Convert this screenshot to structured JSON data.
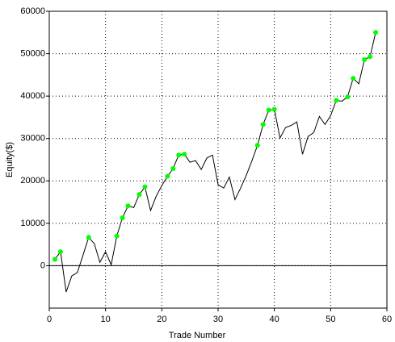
{
  "chart_data": {
    "type": "line",
    "x_label": "Trade Number",
    "y_label": "Equity($)",
    "x": [
      1,
      2,
      3,
      4,
      5,
      6,
      7,
      8,
      9,
      10,
      11,
      12,
      13,
      14,
      15,
      16,
      17,
      18,
      19,
      20,
      21,
      22,
      23,
      24,
      25,
      26,
      27,
      28,
      29,
      30,
      31,
      32,
      33,
      34,
      35,
      36,
      37,
      38,
      39,
      40,
      41,
      42,
      43,
      44,
      45,
      46,
      47,
      48,
      49,
      50,
      51,
      52,
      53,
      54,
      55,
      56,
      57,
      58
    ],
    "series": [
      {
        "color": "#000000",
        "marker": false,
        "values": [
          1500,
          3300,
          -6200,
          -2400,
          -1600,
          2500,
          6700,
          5200,
          800,
          3300,
          200,
          7000,
          11300,
          14100,
          13700,
          16800,
          18600,
          13000,
          16400,
          18900,
          21100,
          22900,
          26100,
          26300,
          24400,
          24800,
          22700,
          25400,
          26100,
          19100,
          18300,
          20900,
          15600,
          18300,
          21300,
          24700,
          28400,
          33300,
          36700,
          36900,
          30100,
          32600,
          33100,
          33900,
          26300,
          30500,
          31400,
          35200,
          33300,
          35400,
          39000,
          38800,
          39800,
          44200,
          42900,
          48600,
          49300,
          55000
        ]
      },
      {
        "color": "#00ff00",
        "marker": true,
        "values": [
          1500,
          3300,
          null,
          null,
          null,
          null,
          6700,
          null,
          null,
          null,
          null,
          7000,
          11300,
          14100,
          null,
          16800,
          18600,
          null,
          null,
          null,
          21100,
          22900,
          26100,
          26300,
          null,
          null,
          null,
          null,
          null,
          null,
          null,
          null,
          null,
          null,
          null,
          null,
          28400,
          33300,
          36700,
          36900,
          null,
          null,
          null,
          null,
          null,
          null,
          null,
          null,
          null,
          null,
          39000,
          null,
          39800,
          44200,
          null,
          48600,
          49300,
          55000
        ]
      }
    ],
    "xlim": [
      0,
      60
    ],
    "xticks": [
      0,
      10,
      20,
      30,
      40,
      50,
      60
    ],
    "ylim": [
      -10000,
      60000
    ],
    "yticks": [
      0,
      10000,
      20000,
      30000,
      40000,
      50000,
      60000
    ],
    "grid": true
  }
}
